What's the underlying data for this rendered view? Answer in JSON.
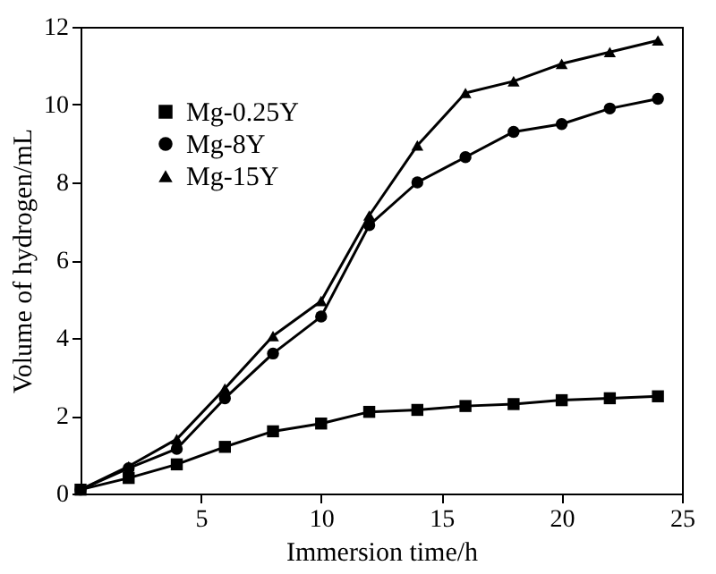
{
  "chart_data": {
    "type": "line",
    "xlabel": "Immersion time/h",
    "ylabel": "Volume of hydrogen/mL",
    "x": [
      0,
      2,
      4,
      6,
      8,
      10,
      12,
      14,
      16,
      18,
      20,
      22,
      24
    ],
    "series": [
      {
        "name": "Mg-0.25Y",
        "color": "#000000",
        "marker": "square",
        "values": [
          0.1,
          0.4,
          0.75,
          1.2,
          1.6,
          1.8,
          2.1,
          2.15,
          2.25,
          2.3,
          2.4,
          2.45,
          2.5
        ]
      },
      {
        "name": "Mg-8Y",
        "color": "#000000",
        "marker": "circle",
        "values": [
          0.1,
          0.65,
          1.15,
          2.45,
          3.6,
          4.55,
          6.9,
          8.0,
          8.65,
          9.3,
          9.5,
          9.9,
          10.15
        ]
      },
      {
        "name": "Mg-15Y",
        "color": "#000000",
        "marker": "triangle",
        "values": [
          0.1,
          0.7,
          1.4,
          2.7,
          4.05,
          4.95,
          7.15,
          8.95,
          10.3,
          10.6,
          11.05,
          11.35,
          11.65
        ]
      }
    ],
    "xlim": [
      0,
      25
    ],
    "xticks": [
      5,
      10,
      15,
      20,
      25
    ],
    "ylim": [
      0,
      12
    ],
    "yticks": [
      0,
      2,
      4,
      6,
      8,
      10,
      12
    ],
    "grid": false,
    "legend": "top left",
    "line_style": "solid"
  }
}
